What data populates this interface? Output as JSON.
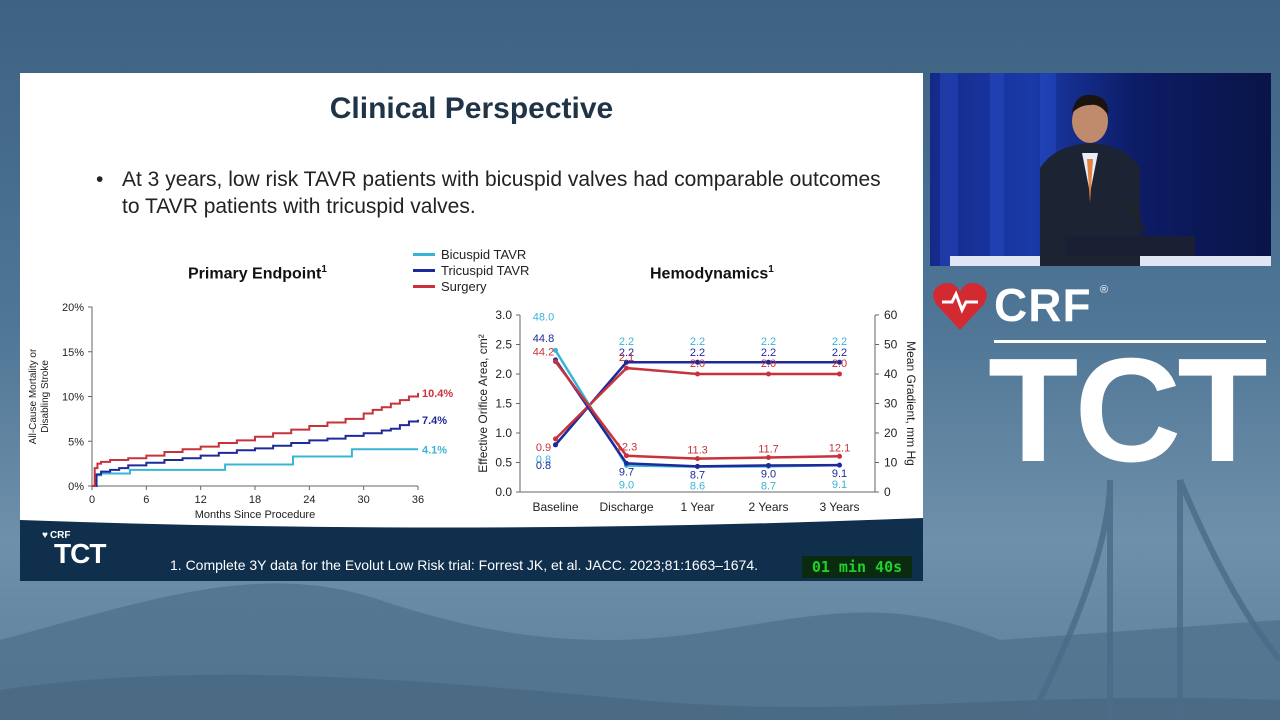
{
  "slide": {
    "title": "Clinical Perspective",
    "bullet": "At 3 years, low risk TAVR patients with bicuspid valves had comparable outcomes to TAVR patients with tricuspid valves.",
    "bullet_mark": "•",
    "footnote": "1. Complete 3Y data for the Evolut Low Risk trial: Forrest JK, et al. JACC. 2023;81:1663–1674.",
    "timer": "01 min 40s",
    "mini_logo_crf": "CRF",
    "mini_logo_tct": "TCT"
  },
  "brand": {
    "crf": "CRF",
    "reg": "®",
    "tct": "TCT"
  },
  "legend": [
    {
      "label": "Bicuspid TAVR",
      "color": "#3ab4d6"
    },
    {
      "label": "Tricuspid TAVR",
      "color": "#1f2a9a"
    },
    {
      "label": "Surgery",
      "color": "#c8323a"
    }
  ],
  "chart_data": [
    {
      "type": "line",
      "title": "Primary Endpoint",
      "title_sup": "1",
      "ylabel_lines": [
        "All-Cause Mortality or",
        "Disabling Stroke"
      ],
      "xlabel": "Months Since Procedure",
      "x_ticks": [
        0,
        6,
        12,
        18,
        24,
        30,
        36
      ],
      "y_ticks": [
        0,
        5,
        10,
        15,
        20
      ],
      "y_tick_labels": [
        "0%",
        "5%",
        "10%",
        "15%",
        "20%"
      ],
      "xlim": [
        0,
        36
      ],
      "ylim": [
        0,
        20
      ],
      "series": [
        {
          "name": "Bicuspid TAVR",
          "color": "#3ab4d6",
          "end_label": "4.1%",
          "x": [
            0,
            0.5,
            1,
            4,
            4.2,
            14.5,
            14.7,
            22,
            22.2,
            28.5,
            28.7,
            36
          ],
          "y": [
            0,
            1.2,
            1.4,
            1.4,
            1.8,
            1.8,
            2.4,
            2.4,
            3.3,
            3.3,
            4.1,
            4.1
          ]
        },
        {
          "name": "Tricuspid TAVR",
          "color": "#1f2a9a",
          "end_label": "7.4%",
          "x": [
            0,
            0.5,
            1,
            2,
            3,
            4,
            6,
            8,
            10,
            12,
            14,
            16,
            18,
            20,
            22,
            24,
            26,
            28,
            30,
            32,
            33,
            34,
            35,
            36
          ],
          "y": [
            0,
            1.3,
            1.6,
            1.8,
            2.0,
            2.3,
            2.6,
            2.9,
            3.1,
            3.4,
            3.7,
            4.0,
            4.2,
            4.5,
            4.8,
            5.1,
            5.3,
            5.6,
            5.9,
            6.2,
            6.4,
            6.8,
            7.2,
            7.4
          ]
        },
        {
          "name": "Surgery",
          "color": "#c8323a",
          "end_label": "10.4%",
          "x": [
            0,
            0.3,
            0.6,
            1,
            2,
            4,
            6,
            8,
            10,
            12,
            14,
            16,
            18,
            20,
            22,
            24,
            26,
            28,
            30,
            31,
            32,
            33,
            34,
            35,
            36
          ],
          "y": [
            0,
            2.0,
            2.5,
            2.7,
            2.9,
            3.1,
            3.4,
            3.8,
            4.1,
            4.4,
            4.8,
            5.1,
            5.5,
            5.9,
            6.3,
            6.7,
            7.1,
            7.5,
            8.1,
            8.5,
            8.8,
            9.2,
            9.6,
            10.0,
            10.4
          ]
        }
      ]
    },
    {
      "type": "line",
      "title": "Hemodynamics",
      "title_sup": "1",
      "categories": [
        "Baseline",
        "Discharge",
        "1 Year",
        "2 Years",
        "3 Years"
      ],
      "ylabel_left": "Effective Orifice Area, cm²",
      "ylabel_right": "Mean Gradient, mm Hg",
      "ylim_left": [
        0,
        3
      ],
      "ylim_right": [
        0,
        60
      ],
      "y_ticks_left": [
        "0.0",
        "0.5",
        "1.0",
        "1.5",
        "2.0",
        "2.5",
        "3.0"
      ],
      "y_ticks_right": [
        "0",
        "10",
        "20",
        "30",
        "40",
        "50",
        "60"
      ],
      "series": [
        {
          "name": "Bicuspid TAVR",
          "metric": "Effective Orifice Area",
          "axis": "left",
          "color": "#3ab4d6",
          "values": [
            0.8,
            2.2,
            2.2,
            2.2,
            2.2
          ],
          "labels": [
            "0.8",
            "2.2",
            "2.2",
            "2.2",
            "2.2"
          ]
        },
        {
          "name": "Tricuspid TAVR",
          "metric": "Effective Orifice Area",
          "axis": "left",
          "color": "#1f2a9a",
          "values": [
            0.8,
            2.2,
            2.2,
            2.2,
            2.2
          ],
          "labels": [
            "0.8",
            "2.2",
            "2.2",
            "2.2",
            "2.2"
          ]
        },
        {
          "name": "Surgery",
          "metric": "Effective Orifice Area",
          "axis": "left",
          "color": "#c8323a",
          "values": [
            0.9,
            2.1,
            2.0,
            2.0,
            2.0
          ],
          "labels": [
            "0.9",
            "2.1",
            "2.0",
            "2.0",
            "2.0"
          ]
        },
        {
          "name": "Bicuspid TAVR",
          "metric": "Mean Gradient",
          "axis": "right",
          "color": "#3ab4d6",
          "values": [
            48.0,
            9.0,
            8.6,
            8.7,
            9.1
          ],
          "labels": [
            "48.0",
            "9.0",
            "8.6",
            "8.7",
            "9.1"
          ]
        },
        {
          "name": "Tricuspid TAVR",
          "metric": "Mean Gradient",
          "axis": "right",
          "color": "#1f2a9a",
          "values": [
            44.8,
            9.7,
            8.7,
            9.0,
            9.1
          ],
          "labels": [
            "44.8",
            "9.7",
            "8.7",
            "9.0",
            "9.1"
          ]
        },
        {
          "name": "Surgery",
          "metric": "Mean Gradient",
          "axis": "right",
          "color": "#c8323a",
          "values": [
            44.2,
            12.3,
            11.3,
            11.7,
            12.1
          ],
          "labels": [
            "44.2",
            "12.3",
            "11.3",
            "11.7",
            "12.1"
          ]
        }
      ]
    }
  ]
}
